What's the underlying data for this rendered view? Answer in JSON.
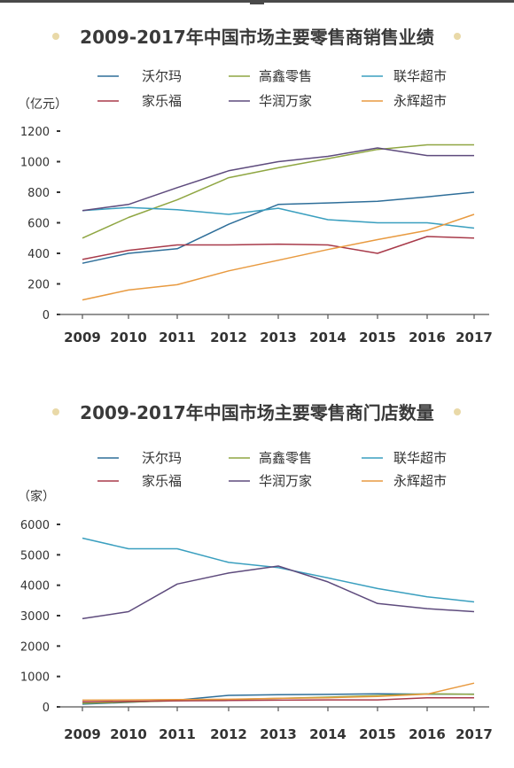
{
  "accent_dot_color": "#e9d9a8",
  "chart_data": [
    {
      "type": "line",
      "title": "2009-2017年中国市场主要零售商销售业绩",
      "ylabel": "（亿元）",
      "ylim": [
        0,
        1200
      ],
      "yticks": [
        "0",
        "200",
        "400",
        "600",
        "800",
        "1000",
        "1200"
      ],
      "x": [
        "2009",
        "2010",
        "2011",
        "2012",
        "2013",
        "2014",
        "2015",
        "2016",
        "2017"
      ],
      "grid": false,
      "legend_position": "top",
      "series": [
        {
          "name": "沃尔玛",
          "color": "#2e6e99",
          "values": [
            335,
            400,
            430,
            590,
            720,
            730,
            740,
            770,
            800
          ]
        },
        {
          "name": "高鑫零售",
          "color": "#8fa642",
          "values": [
            500,
            635,
            750,
            895,
            960,
            1020,
            1080,
            1110,
            1110
          ]
        },
        {
          "name": "联华超市",
          "color": "#3a9fbf",
          "values": [
            680,
            700,
            685,
            655,
            695,
            620,
            600,
            600,
            565
          ]
        },
        {
          "name": "家乐福",
          "color": "#a83a4a",
          "values": [
            360,
            420,
            455,
            455,
            460,
            455,
            400,
            510,
            500
          ]
        },
        {
          "name": "华润万家",
          "color": "#5e4b7d",
          "values": [
            680,
            720,
            830,
            940,
            1000,
            1035,
            1090,
            1040,
            1040
          ]
        },
        {
          "name": "永辉超市",
          "color": "#e89a40",
          "values": [
            95,
            160,
            195,
            285,
            355,
            425,
            490,
            550,
            655
          ]
        }
      ]
    },
    {
      "type": "line",
      "title": "2009-2017年中国市场主要零售商门店数量",
      "ylabel": "（家）",
      "ylim": [
        0,
        6000
      ],
      "yticks": [
        "0",
        "1000",
        "2000",
        "3000",
        "4000",
        "5000",
        "6000"
      ],
      "x": [
        "2009",
        "2010",
        "2011",
        "2012",
        "2013",
        "2014",
        "2015",
        "2016",
        "2017"
      ],
      "grid": false,
      "legend_position": "top",
      "series": [
        {
          "name": "沃尔玛",
          "color": "#2e6e99",
          "values": [
            90,
            150,
            220,
            380,
            400,
            410,
            430,
            420,
            420
          ]
        },
        {
          "name": "高鑫零售",
          "color": "#8fa642",
          "values": [
            120,
            160,
            200,
            240,
            280,
            320,
            370,
            430,
            410
          ]
        },
        {
          "name": "联华超市",
          "color": "#3a9fbf",
          "values": [
            5550,
            5200,
            5200,
            4750,
            4580,
            4240,
            3890,
            3620,
            3450
          ]
        },
        {
          "name": "家乐福",
          "color": "#a83a4a",
          "values": [
            170,
            180,
            200,
            210,
            220,
            230,
            230,
            300,
            300
          ]
        },
        {
          "name": "华润万家",
          "color": "#5e4b7d",
          "values": [
            2900,
            3130,
            4040,
            4400,
            4630,
            4110,
            3400,
            3230,
            3130
          ]
        },
        {
          "name": "永辉超市",
          "color": "#e89a40",
          "values": [
            220,
            230,
            240,
            250,
            280,
            300,
            340,
            420,
            780
          ]
        }
      ]
    }
  ]
}
